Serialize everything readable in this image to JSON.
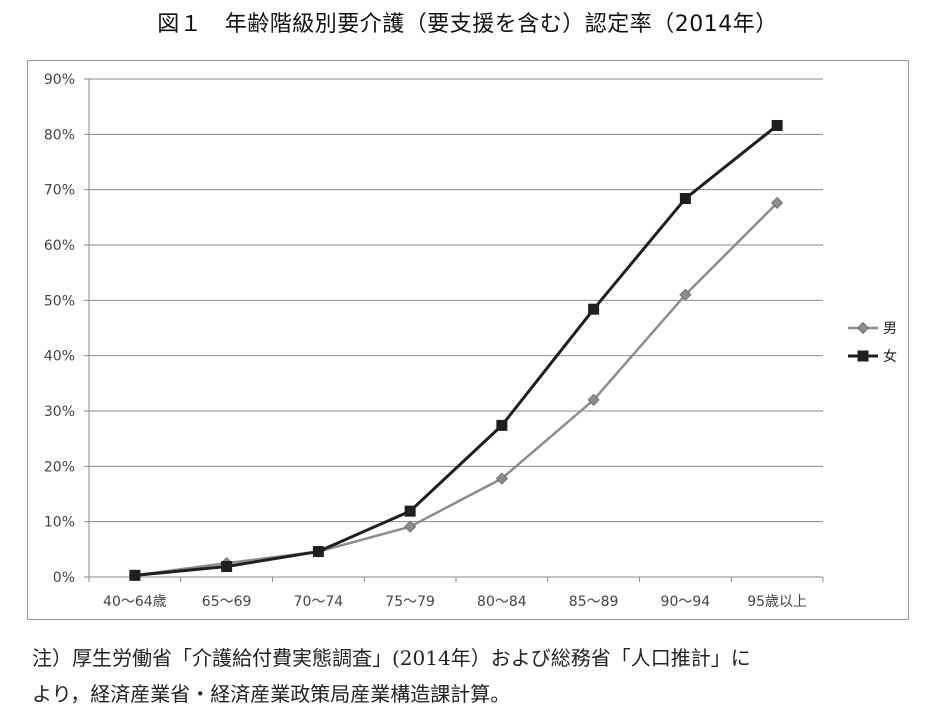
{
  "title": "図１　年齢階級別要介護（要支援を含む）認定率（2014年）",
  "note": {
    "line1": "注）厚生労働省「介護給付費実態調査」(2014年）および総務省「人口推計」に",
    "line2": "より，経済産業省・経済産業政策局産業構造課計算。"
  },
  "chart_data": {
    "type": "line",
    "title": "図１　年齢階級別要介護（要支援を含む）認定率（2014年）",
    "xlabel": "",
    "ylabel": "",
    "categories": [
      "40〜64歳",
      "65〜69",
      "70〜74",
      "75〜79",
      "80〜84",
      "85〜89",
      "90〜94",
      "95歳以上"
    ],
    "y_ticks": [
      "0%",
      "10%",
      "20%",
      "30%",
      "40%",
      "50%",
      "60%",
      "70%",
      "80%",
      "90%"
    ],
    "ylim": [
      0,
      90
    ],
    "grid": true,
    "legend_position": "right",
    "series": [
      {
        "name": "男",
        "values": [
          0.3,
          2.5,
          4.6,
          9.1,
          17.8,
          32.0,
          51.0,
          67.6
        ],
        "color": "#8c8c8c",
        "marker": "diamond"
      },
      {
        "name": "女",
        "values": [
          0.3,
          1.9,
          4.6,
          11.9,
          27.4,
          48.4,
          68.4,
          81.6
        ],
        "color": "#1f1f1f",
        "marker": "square"
      }
    ]
  }
}
